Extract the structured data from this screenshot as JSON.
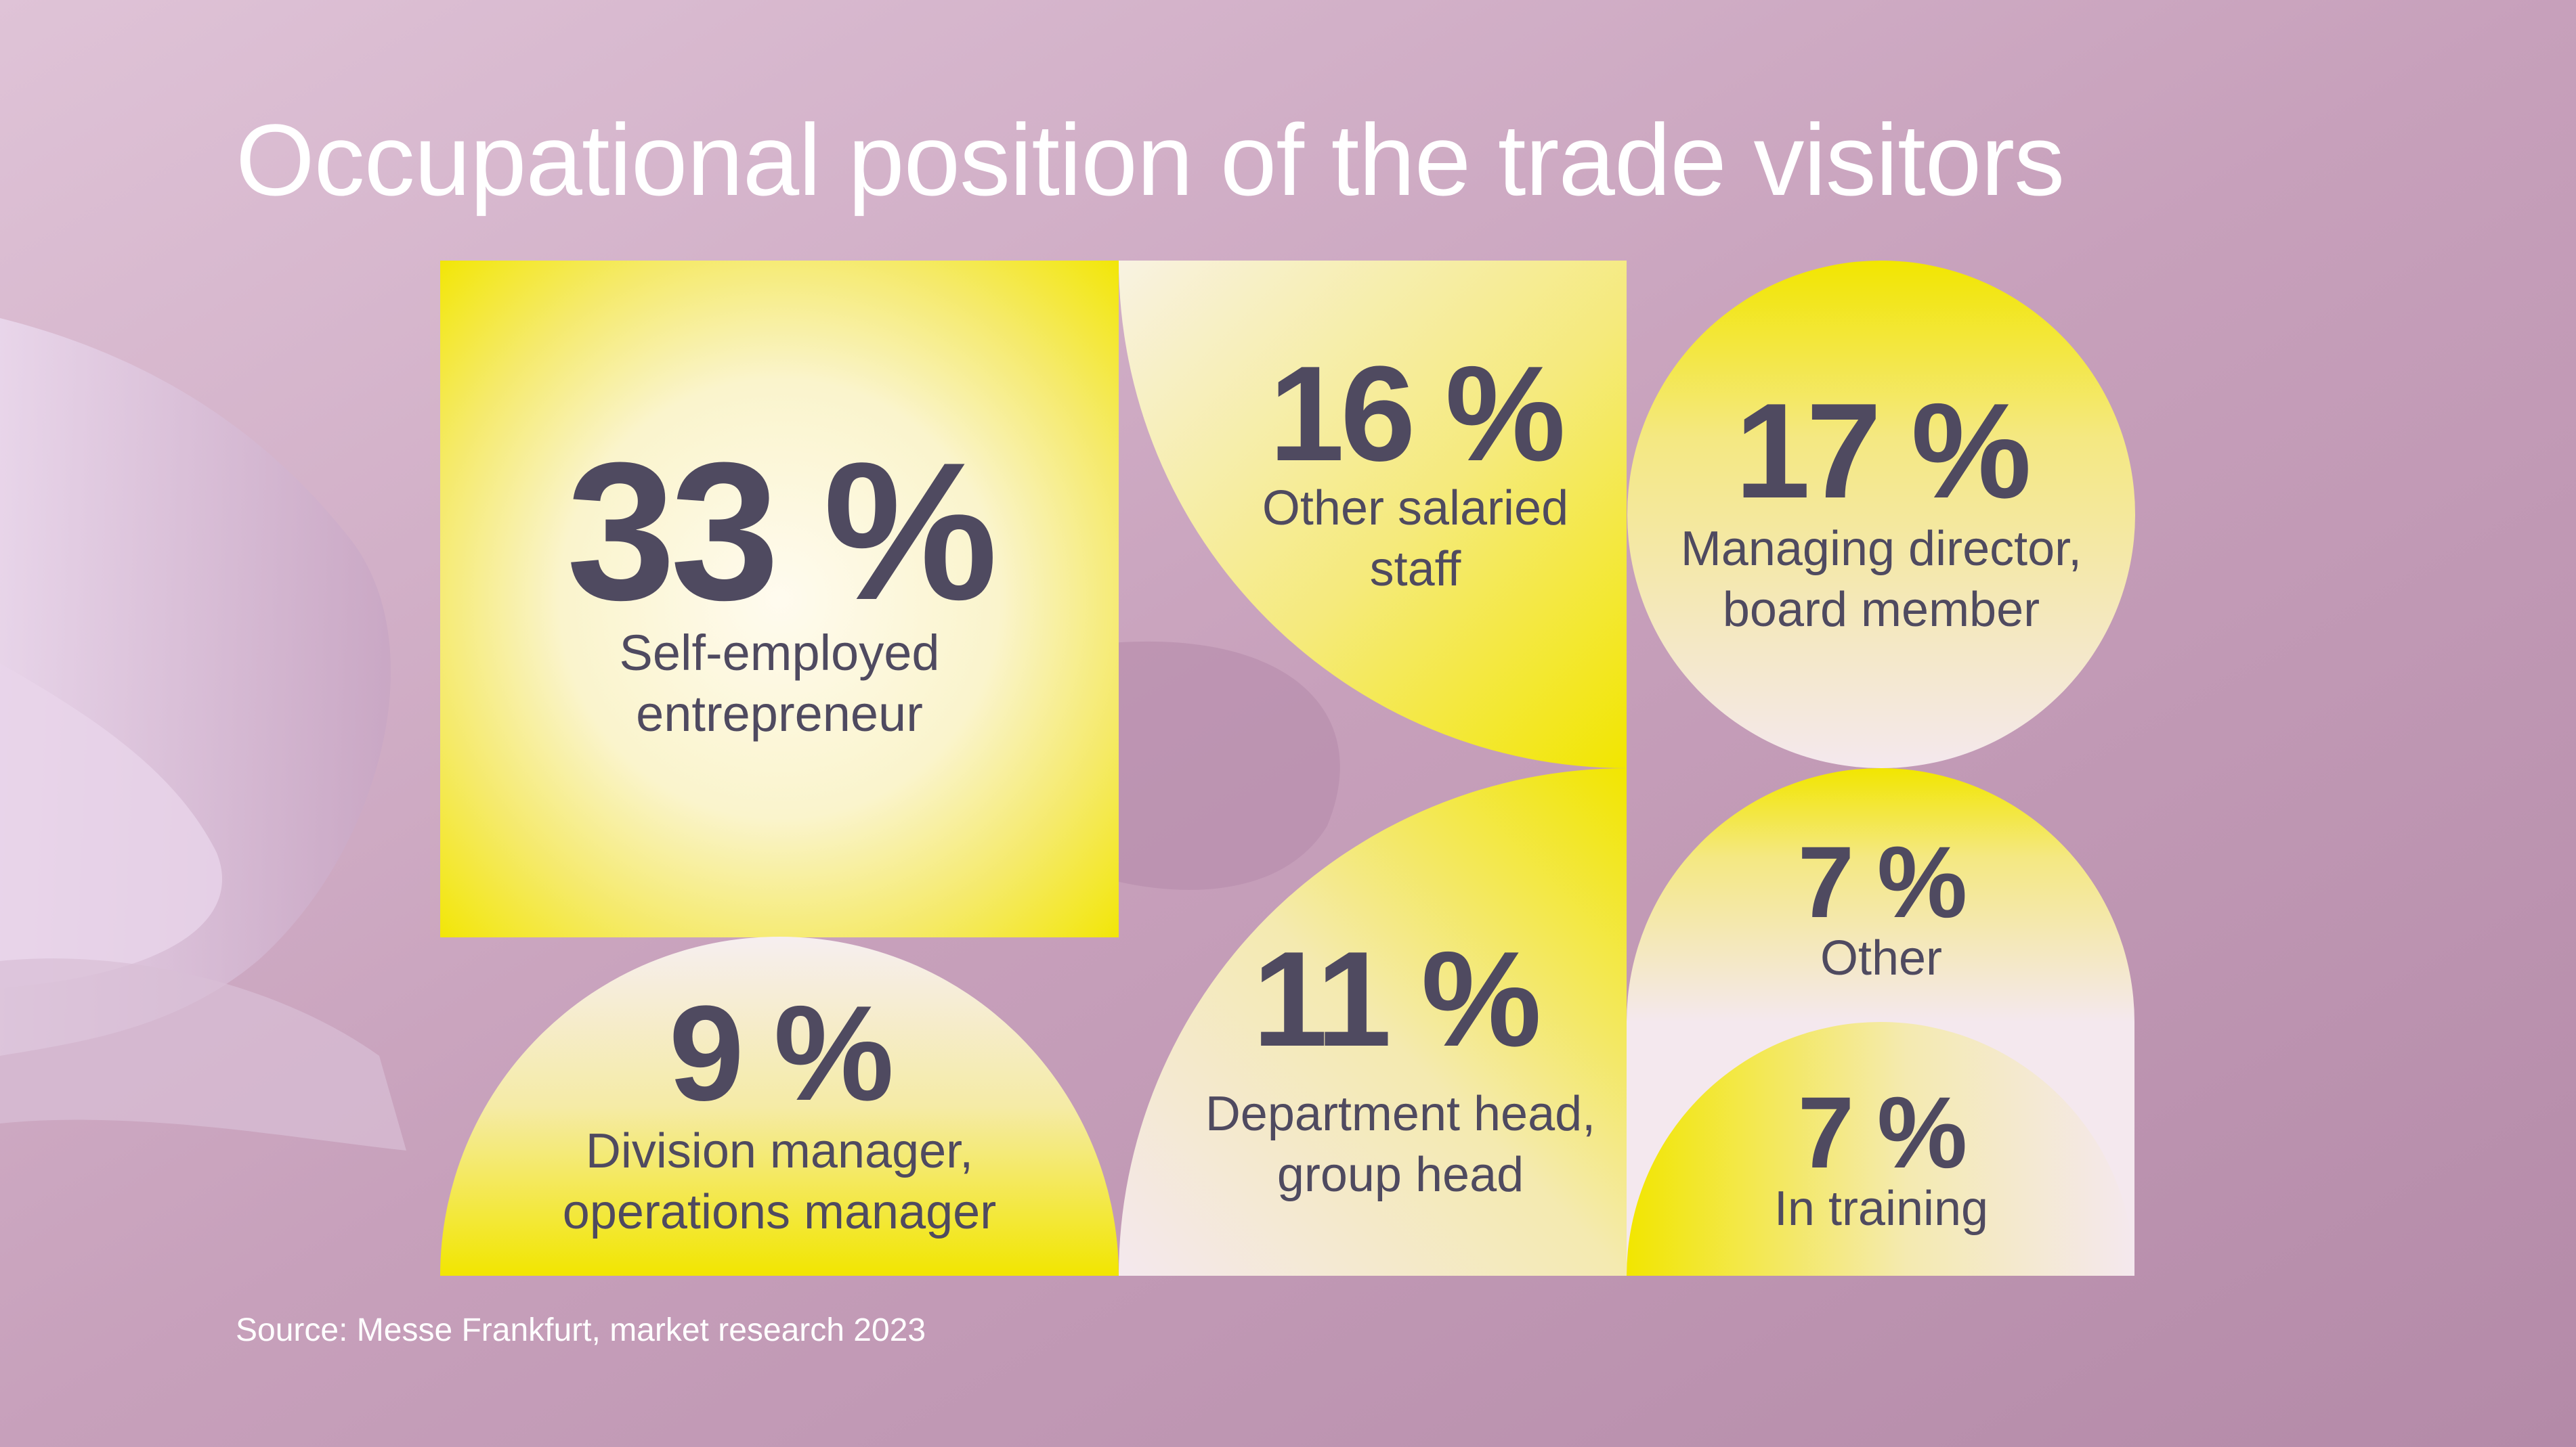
{
  "title": "Occupational position of the trade visitors",
  "source": "Source: Messe Frankfurt, market research 2023",
  "colors": {
    "accent": "#f2e600",
    "tile_light": "#f4e8ee",
    "text": "#4f4a60",
    "background": "#c49ab7"
  },
  "chart_data": {
    "type": "tile-infographic",
    "unit": "%",
    "categories": [
      "Self-employed entrepreneur",
      "Other salaried staff",
      "Managing director, board member",
      "Division manager, operations manager",
      "Department head, group head",
      "Other",
      "In training"
    ],
    "values": [
      33,
      16,
      17,
      9,
      11,
      7,
      7
    ],
    "tiles": [
      {
        "value": 33,
        "value_label": "33 %",
        "label_lines": [
          "Self-employed",
          "entrepreneur"
        ],
        "shape": "square-radial"
      },
      {
        "value": 16,
        "value_label": "16 %",
        "label_lines": [
          "Other salaried",
          "staff"
        ],
        "shape": "quarter-arc"
      },
      {
        "value": 17,
        "value_label": "17 %",
        "label_lines": [
          "Managing director,",
          "board member"
        ],
        "shape": "circle"
      },
      {
        "value": 9,
        "value_label": "9 %",
        "label_lines": [
          "Division manager,",
          "operations manager"
        ],
        "shape": "half-circle"
      },
      {
        "value": 11,
        "value_label": "11 %",
        "label_lines": [
          "Department head,",
          "group head"
        ],
        "shape": "quarter-circle"
      },
      {
        "value": 7,
        "value_label": "7 %",
        "label_lines": [
          "Other"
        ],
        "shape": "half-circle"
      },
      {
        "value": 7,
        "value_label": "7 %",
        "label_lines": [
          "In training"
        ],
        "shape": "half-circle-inverse"
      }
    ]
  }
}
